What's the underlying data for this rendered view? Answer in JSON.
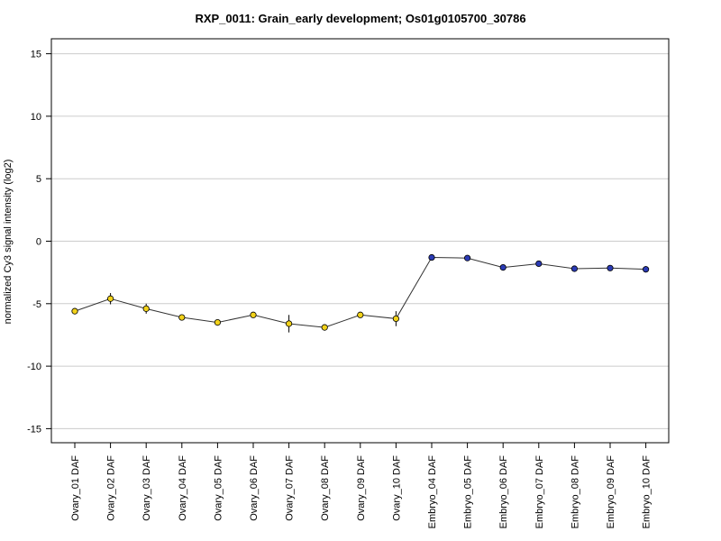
{
  "chart_data": {
    "type": "line",
    "title": "RXP_0011: Grain_early development; Os01g0105700_30786",
    "xlabel": "",
    "ylabel": "normalized Cy3 signal intensity (log2)",
    "ylim": [
      -16,
      16
    ],
    "yticks": [
      -15,
      -10,
      -5,
      0,
      5,
      10,
      15
    ],
    "grid": "horizontal",
    "categories": [
      "Ovary_01 DAF",
      "Ovary_02 DAF",
      "Ovary_03 DAF",
      "Ovary_04 DAF",
      "Ovary_05 DAF",
      "Ovary_06 DAF",
      "Ovary_07 DAF",
      "Ovary_08 DAF",
      "Ovary_09 DAF",
      "Ovary_10 DAF",
      "Embryo_04 DAF",
      "Embryo_05 DAF",
      "Embryo_06 DAF",
      "Embryo_07 DAF",
      "Embryo_08 DAF",
      "Embryo_09 DAF",
      "Embryo_10 DAF"
    ],
    "values": [
      -5.6,
      -4.6,
      -5.4,
      -6.1,
      -6.5,
      -5.9,
      -6.6,
      -6.9,
      -5.9,
      -6.2,
      -1.3,
      -1.35,
      -2.1,
      -1.8,
      -2.2,
      -2.15,
      -2.25
    ],
    "errors": [
      0.15,
      0.45,
      0.4,
      0.15,
      0.1,
      0.1,
      0.7,
      0.1,
      0.1,
      0.6,
      0.1,
      0.1,
      0.15,
      0.2,
      0.1,
      0.1,
      0.25
    ],
    "point_colors": [
      "#f2d21a",
      "#f2d21a",
      "#f2d21a",
      "#f2d21a",
      "#f2d21a",
      "#f2d21a",
      "#f2d21a",
      "#f2d21a",
      "#f2d21a",
      "#f2d21a",
      "#2b3bb5",
      "#2b3bb5",
      "#2b3bb5",
      "#2b3bb5",
      "#2b3bb5",
      "#2b3bb5",
      "#2b3bb5"
    ],
    "line_color": "#333333",
    "grid_color": "#cccccc"
  }
}
